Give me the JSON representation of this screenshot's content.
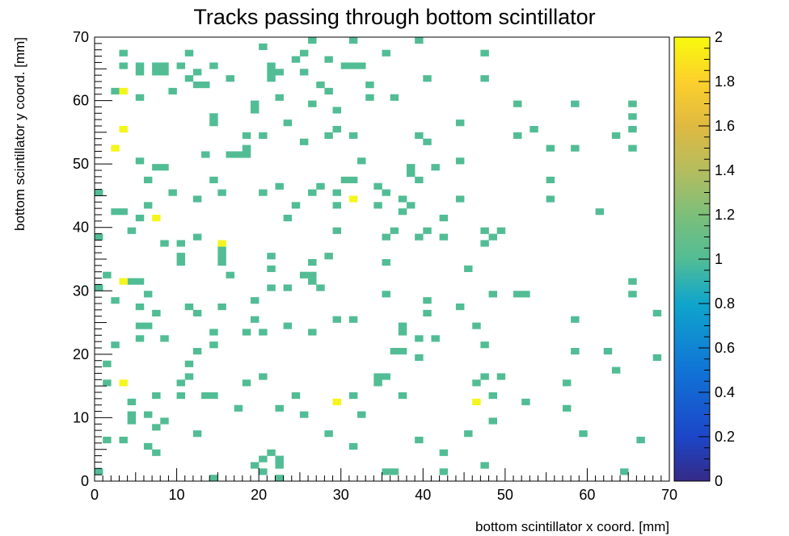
{
  "chart_data": {
    "type": "heatmap",
    "title": "Tracks passing through bottom scintillator",
    "xlabel": "bottom scintillator x coord. [mm]",
    "ylabel": "bottom scintillator y coord. [mm]",
    "xlim": [
      0,
      70
    ],
    "ylim": [
      0,
      70
    ],
    "bin_size": 1,
    "x_ticks": [
      "0",
      "10",
      "20",
      "30",
      "40",
      "50",
      "60",
      "70"
    ],
    "y_ticks": [
      "0",
      "10",
      "20",
      "30",
      "40",
      "50",
      "60",
      "70"
    ],
    "colorbar": {
      "range": [
        0,
        2
      ],
      "ticks": [
        "0",
        "0.2",
        "0.4",
        "0.6",
        "0.8",
        "1",
        "1.2",
        "1.4",
        "1.6",
        "1.8",
        "2"
      ],
      "value_1_color": "#52bd95",
      "value_2_color": "#f5f51e"
    },
    "bins_value_2": [
      [
        3,
        61
      ],
      [
        3,
        55
      ],
      [
        2,
        52
      ],
      [
        31,
        44
      ],
      [
        7,
        41
      ],
      [
        15,
        37
      ],
      [
        3,
        31
      ],
      [
        3,
        15
      ],
      [
        29,
        12
      ],
      [
        46,
        12
      ]
    ],
    "bins_value_1": [
      [
        26,
        69
      ],
      [
        31,
        69
      ],
      [
        39,
        69
      ],
      [
        20,
        68
      ],
      [
        3,
        67
      ],
      [
        11,
        67
      ],
      [
        25,
        67
      ],
      [
        35,
        67
      ],
      [
        47,
        67
      ],
      [
        24,
        66
      ],
      [
        28,
        66
      ],
      [
        3,
        65
      ],
      [
        5,
        65
      ],
      [
        7,
        65
      ],
      [
        8,
        65
      ],
      [
        10,
        65
      ],
      [
        14,
        65
      ],
      [
        21,
        65
      ],
      [
        30,
        65
      ],
      [
        31,
        65
      ],
      [
        32,
        65
      ],
      [
        5,
        64
      ],
      [
        7,
        64
      ],
      [
        8,
        64
      ],
      [
        12,
        64
      ],
      [
        21,
        64
      ],
      [
        22,
        64
      ],
      [
        25,
        64
      ],
      [
        11,
        63
      ],
      [
        16,
        63
      ],
      [
        21,
        63
      ],
      [
        40,
        63
      ],
      [
        47,
        63
      ],
      [
        12,
        62
      ],
      [
        13,
        62
      ],
      [
        27,
        62
      ],
      [
        33,
        62
      ],
      [
        2,
        61
      ],
      [
        9,
        61
      ],
      [
        28,
        61
      ],
      [
        5,
        60
      ],
      [
        22,
        60
      ],
      [
        33,
        60
      ],
      [
        36,
        60
      ],
      [
        19,
        59
      ],
      [
        26,
        59
      ],
      [
        51,
        59
      ],
      [
        58,
        59
      ],
      [
        65,
        59
      ],
      [
        19,
        58
      ],
      [
        29,
        58
      ],
      [
        14,
        57
      ],
      [
        65,
        57
      ],
      [
        14,
        56
      ],
      [
        23,
        56
      ],
      [
        44,
        56
      ],
      [
        29,
        55
      ],
      [
        53,
        55
      ],
      [
        65,
        55
      ],
      [
        18,
        54
      ],
      [
        20,
        54
      ],
      [
        28,
        54
      ],
      [
        31,
        54
      ],
      [
        39,
        54
      ],
      [
        51,
        54
      ],
      [
        63,
        54
      ],
      [
        25,
        53
      ],
      [
        40,
        53
      ],
      [
        18,
        52
      ],
      [
        55,
        52
      ],
      [
        58,
        52
      ],
      [
        65,
        52
      ],
      [
        13,
        51
      ],
      [
        16,
        51
      ],
      [
        17,
        51
      ],
      [
        18,
        51
      ],
      [
        5,
        50
      ],
      [
        32,
        50
      ],
      [
        44,
        50
      ],
      [
        7,
        49
      ],
      [
        8,
        49
      ],
      [
        38,
        49
      ],
      [
        41,
        49
      ],
      [
        38,
        48
      ],
      [
        6,
        47
      ],
      [
        14,
        47
      ],
      [
        30,
        47
      ],
      [
        31,
        47
      ],
      [
        39,
        47
      ],
      [
        55,
        47
      ],
      [
        22,
        46
      ],
      [
        27,
        46
      ],
      [
        34,
        46
      ],
      [
        0,
        45
      ],
      [
        9,
        45
      ],
      [
        15,
        45
      ],
      [
        20,
        45
      ],
      [
        26,
        45
      ],
      [
        29,
        45
      ],
      [
        35,
        45
      ],
      [
        12,
        44
      ],
      [
        37,
        44
      ],
      [
        44,
        44
      ],
      [
        55,
        44
      ],
      [
        6,
        43
      ],
      [
        24,
        43
      ],
      [
        29,
        43
      ],
      [
        34,
        43
      ],
      [
        38,
        43
      ],
      [
        2,
        42
      ],
      [
        3,
        42
      ],
      [
        37,
        42
      ],
      [
        61,
        42
      ],
      [
        5,
        41
      ],
      [
        23,
        41
      ],
      [
        42,
        41
      ],
      [
        4,
        39
      ],
      [
        29,
        39
      ],
      [
        36,
        39
      ],
      [
        40,
        39
      ],
      [
        47,
        39
      ],
      [
        49,
        39
      ],
      [
        0,
        38
      ],
      [
        12,
        38
      ],
      [
        35,
        38
      ],
      [
        39,
        38
      ],
      [
        42,
        38
      ],
      [
        48,
        38
      ],
      [
        8,
        37
      ],
      [
        10,
        37
      ],
      [
        47,
        37
      ],
      [
        15,
        36
      ],
      [
        10,
        35
      ],
      [
        15,
        35
      ],
      [
        21,
        35
      ],
      [
        28,
        35
      ],
      [
        10,
        34
      ],
      [
        15,
        34
      ],
      [
        26,
        34
      ],
      [
        35,
        34
      ],
      [
        21,
        33
      ],
      [
        45,
        33
      ],
      [
        1,
        32
      ],
      [
        16,
        32
      ],
      [
        25,
        32
      ],
      [
        26,
        32
      ],
      [
        4,
        31
      ],
      [
        5,
        31
      ],
      [
        26,
        31
      ],
      [
        65,
        31
      ],
      [
        0,
        30
      ],
      [
        21,
        30
      ],
      [
        23,
        30
      ],
      [
        27,
        30
      ],
      [
        6,
        29
      ],
      [
        35,
        29
      ],
      [
        48,
        29
      ],
      [
        51,
        29
      ],
      [
        52,
        29
      ],
      [
        65,
        29
      ],
      [
        2,
        28
      ],
      [
        19,
        28
      ],
      [
        40,
        28
      ],
      [
        5,
        27
      ],
      [
        11,
        27
      ],
      [
        15,
        27
      ],
      [
        44,
        27
      ],
      [
        7,
        26
      ],
      [
        12,
        26
      ],
      [
        40,
        26
      ],
      [
        68,
        26
      ],
      [
        19,
        25
      ],
      [
        29,
        25
      ],
      [
        31,
        25
      ],
      [
        58,
        25
      ],
      [
        5,
        24
      ],
      [
        6,
        24
      ],
      [
        23,
        24
      ],
      [
        37,
        24
      ],
      [
        46,
        24
      ],
      [
        14,
        23
      ],
      [
        18,
        23
      ],
      [
        20,
        23
      ],
      [
        26,
        23
      ],
      [
        37,
        23
      ],
      [
        5,
        22
      ],
      [
        8,
        22
      ],
      [
        39,
        22
      ],
      [
        41,
        22
      ],
      [
        2,
        21
      ],
      [
        14,
        21
      ],
      [
        47,
        21
      ],
      [
        12,
        20
      ],
      [
        36,
        20
      ],
      [
        37,
        20
      ],
      [
        58,
        20
      ],
      [
        62,
        20
      ],
      [
        39,
        19
      ],
      [
        68,
        19
      ],
      [
        1,
        18
      ],
      [
        11,
        18
      ],
      [
        63,
        17
      ],
      [
        11,
        16
      ],
      [
        20,
        16
      ],
      [
        34,
        16
      ],
      [
        35,
        16
      ],
      [
        47,
        16
      ],
      [
        49,
        16
      ],
      [
        1,
        15
      ],
      [
        10,
        15
      ],
      [
        18,
        15
      ],
      [
        34,
        15
      ],
      [
        46,
        15
      ],
      [
        57,
        15
      ],
      [
        7,
        13
      ],
      [
        10,
        13
      ],
      [
        13,
        13
      ],
      [
        14,
        13
      ],
      [
        24,
        13
      ],
      [
        31,
        13
      ],
      [
        37,
        13
      ],
      [
        48,
        13
      ],
      [
        4,
        12
      ],
      [
        52,
        12
      ],
      [
        17,
        11
      ],
      [
        22,
        11
      ],
      [
        57,
        11
      ],
      [
        4,
        10
      ],
      [
        6,
        10
      ],
      [
        25,
        10
      ],
      [
        32,
        10
      ],
      [
        4,
        9
      ],
      [
        8,
        9
      ],
      [
        48,
        9
      ],
      [
        7,
        8
      ],
      [
        12,
        7
      ],
      [
        28,
        7
      ],
      [
        45,
        7
      ],
      [
        59,
        7
      ],
      [
        1,
        6
      ],
      [
        3,
        6
      ],
      [
        39,
        6
      ],
      [
        66,
        6
      ],
      [
        6,
        5
      ],
      [
        31,
        5
      ],
      [
        7,
        4
      ],
      [
        21,
        4
      ],
      [
        42,
        4
      ],
      [
        20,
        3
      ],
      [
        22,
        3
      ],
      [
        19,
        2
      ],
      [
        22,
        2
      ],
      [
        47,
        2
      ],
      [
        0,
        1
      ],
      [
        20,
        1
      ],
      [
        35,
        1
      ],
      [
        36,
        1
      ],
      [
        42,
        1
      ],
      [
        64,
        1
      ],
      [
        14,
        0
      ],
      [
        22,
        0
      ]
    ]
  }
}
